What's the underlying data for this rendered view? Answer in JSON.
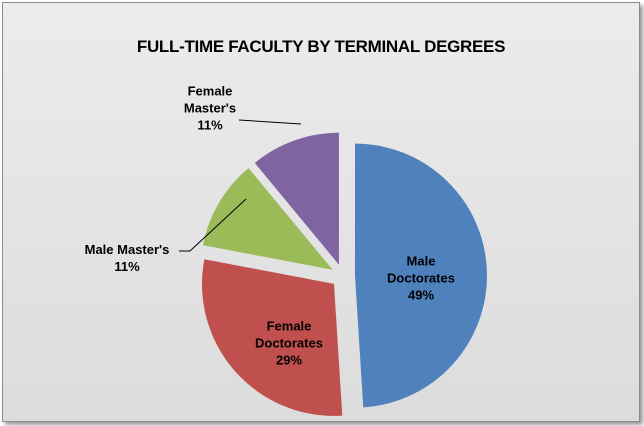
{
  "chart_data": {
    "type": "pie",
    "title": "FULL-TIME FACULTY BY TERMINAL DEGREES",
    "categories": [
      "Male Doctorates",
      "Female Doctorates",
      "Male Master's",
      "Female Master's"
    ],
    "values": [
      49,
      29,
      11,
      11
    ],
    "value_labels": [
      "49%",
      "29%",
      "11%",
      "11%"
    ],
    "colors": [
      "#4f81bd",
      "#c0504d",
      "#9bbb59",
      "#8064a2"
    ]
  }
}
